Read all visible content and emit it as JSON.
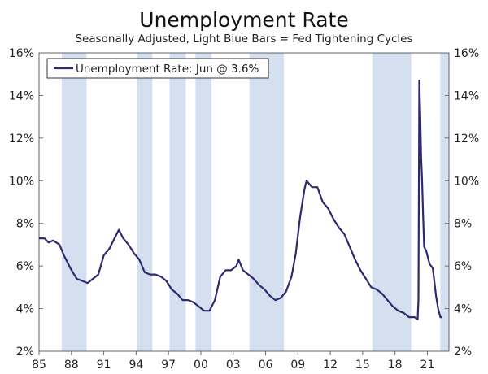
{
  "chart_data": {
    "type": "line",
    "title": "Unemployment Rate",
    "subtitle": "Seasonally Adjusted, Light Blue Bars = Fed Tightening Cycles",
    "xlabel": "",
    "ylabel": "",
    "xlim": [
      1985.0,
      2023.0
    ],
    "ylim": [
      2,
      16
    ],
    "y_ticks": [
      {
        "value": 2,
        "label": "2%"
      },
      {
        "value": 4,
        "label": "4%"
      },
      {
        "value": 6,
        "label": "6%"
      },
      {
        "value": 8,
        "label": "8%"
      },
      {
        "value": 10,
        "label": "10%"
      },
      {
        "value": 12,
        "label": "12%"
      },
      {
        "value": 14,
        "label": "14%"
      },
      {
        "value": 16,
        "label": "16%"
      }
    ],
    "x_ticks": [
      {
        "value": 1985,
        "label": "85"
      },
      {
        "value": 1988,
        "label": "88"
      },
      {
        "value": 1991,
        "label": "91"
      },
      {
        "value": 1994,
        "label": "94"
      },
      {
        "value": 1997,
        "label": "97"
      },
      {
        "value": 2000,
        "label": "00"
      },
      {
        "value": 2003,
        "label": "03"
      },
      {
        "value": 2006,
        "label": "06"
      },
      {
        "value": 2009,
        "label": "09"
      },
      {
        "value": 2012,
        "label": "12"
      },
      {
        "value": 2015,
        "label": "15"
      },
      {
        "value": 2018,
        "label": "18"
      },
      {
        "value": 2021,
        "label": "21"
      }
    ],
    "legend": {
      "label": "Unemployment Rate: Jun @ 3.6%",
      "position": "top-left"
    },
    "tightening_cycles": [
      {
        "start": 1987.1,
        "end": 1989.4
      },
      {
        "start": 1994.1,
        "end": 1995.5
      },
      {
        "start": 1997.1,
        "end": 1998.6
      },
      {
        "start": 1999.5,
        "end": 2001.0
      },
      {
        "start": 2004.5,
        "end": 2007.7
      },
      {
        "start": 2015.9,
        "end": 2019.5
      },
      {
        "start": 2022.2,
        "end": 2023.0
      }
    ],
    "series": [
      {
        "name": "Unemployment Rate",
        "color": "#2e2a6e",
        "band_color": "#d4e0ef",
        "points": [
          [
            1985.0,
            7.3
          ],
          [
            1985.5,
            7.3
          ],
          [
            1985.9,
            7.1
          ],
          [
            1986.3,
            7.2
          ],
          [
            1986.9,
            7.0
          ],
          [
            1987.3,
            6.5
          ],
          [
            1987.9,
            5.9
          ],
          [
            1988.5,
            5.4
          ],
          [
            1989.0,
            5.3
          ],
          [
            1989.5,
            5.2
          ],
          [
            1990.0,
            5.4
          ],
          [
            1990.5,
            5.6
          ],
          [
            1991.0,
            6.5
          ],
          [
            1991.5,
            6.8
          ],
          [
            1992.0,
            7.3
          ],
          [
            1992.4,
            7.7
          ],
          [
            1992.8,
            7.3
          ],
          [
            1993.3,
            7.0
          ],
          [
            1993.8,
            6.6
          ],
          [
            1994.3,
            6.3
          ],
          [
            1994.8,
            5.7
          ],
          [
            1995.3,
            5.6
          ],
          [
            1995.8,
            5.6
          ],
          [
            1996.3,
            5.5
          ],
          [
            1996.8,
            5.3
          ],
          [
            1997.3,
            4.9
          ],
          [
            1997.8,
            4.7
          ],
          [
            1998.3,
            4.4
          ],
          [
            1998.8,
            4.4
          ],
          [
            1999.3,
            4.3
          ],
          [
            1999.8,
            4.1
          ],
          [
            2000.3,
            3.9
          ],
          [
            2000.8,
            3.9
          ],
          [
            2001.3,
            4.4
          ],
          [
            2001.8,
            5.5
          ],
          [
            2002.3,
            5.8
          ],
          [
            2002.8,
            5.8
          ],
          [
            2003.3,
            6.0
          ],
          [
            2003.5,
            6.3
          ],
          [
            2003.9,
            5.8
          ],
          [
            2004.4,
            5.6
          ],
          [
            2004.9,
            5.4
          ],
          [
            2005.4,
            5.1
          ],
          [
            2005.9,
            4.9
          ],
          [
            2006.4,
            4.6
          ],
          [
            2006.9,
            4.4
          ],
          [
            2007.4,
            4.5
          ],
          [
            2007.9,
            4.8
          ],
          [
            2008.4,
            5.5
          ],
          [
            2008.8,
            6.6
          ],
          [
            2009.2,
            8.3
          ],
          [
            2009.6,
            9.6
          ],
          [
            2009.8,
            10.0
          ],
          [
            2010.3,
            9.7
          ],
          [
            2010.8,
            9.7
          ],
          [
            2011.3,
            9.0
          ],
          [
            2011.8,
            8.7
          ],
          [
            2012.3,
            8.2
          ],
          [
            2012.8,
            7.8
          ],
          [
            2013.3,
            7.5
          ],
          [
            2013.8,
            6.9
          ],
          [
            2014.3,
            6.3
          ],
          [
            2014.8,
            5.8
          ],
          [
            2015.3,
            5.4
          ],
          [
            2015.8,
            5.0
          ],
          [
            2016.3,
            4.9
          ],
          [
            2016.8,
            4.7
          ],
          [
            2017.3,
            4.4
          ],
          [
            2017.8,
            4.1
          ],
          [
            2018.3,
            3.9
          ],
          [
            2018.8,
            3.8
          ],
          [
            2019.3,
            3.6
          ],
          [
            2019.8,
            3.6
          ],
          [
            2020.1,
            3.5
          ],
          [
            2020.17,
            4.4
          ],
          [
            2020.25,
            14.7
          ],
          [
            2020.33,
            13.3
          ],
          [
            2020.42,
            11.1
          ],
          [
            2020.5,
            10.2
          ],
          [
            2020.6,
            8.4
          ],
          [
            2020.7,
            6.9
          ],
          [
            2020.9,
            6.7
          ],
          [
            2021.2,
            6.1
          ],
          [
            2021.5,
            5.9
          ],
          [
            2021.8,
            4.6
          ],
          [
            2022.0,
            4.0
          ],
          [
            2022.2,
            3.6
          ],
          [
            2022.4,
            3.6
          ]
        ]
      }
    ]
  }
}
